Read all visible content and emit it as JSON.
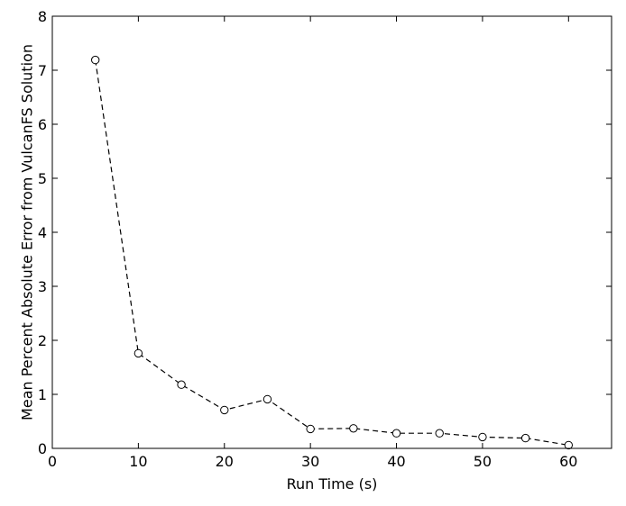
{
  "chart_data": {
    "type": "line",
    "title": "",
    "xlabel": "Run Time (s)",
    "ylabel": "Mean Percent Absolute Error from VulcanFS Solution",
    "xlim": [
      0,
      65
    ],
    "ylim": [
      0,
      8
    ],
    "xticks": [
      0,
      10,
      20,
      30,
      40,
      50,
      60
    ],
    "yticks": [
      0,
      1,
      2,
      3,
      4,
      5,
      6,
      7,
      8
    ],
    "grid": false,
    "legend": false,
    "series": [
      {
        "x": [
          5,
          10,
          15,
          20,
          25,
          30,
          35,
          40,
          45,
          50,
          55,
          60
        ],
        "y": [
          7.19,
          1.76,
          1.18,
          0.71,
          0.91,
          0.36,
          0.37,
          0.28,
          0.28,
          0.21,
          0.19,
          0.06
        ],
        "line_style": "dashed",
        "marker": "open-circle",
        "color": "#000000"
      }
    ]
  }
}
